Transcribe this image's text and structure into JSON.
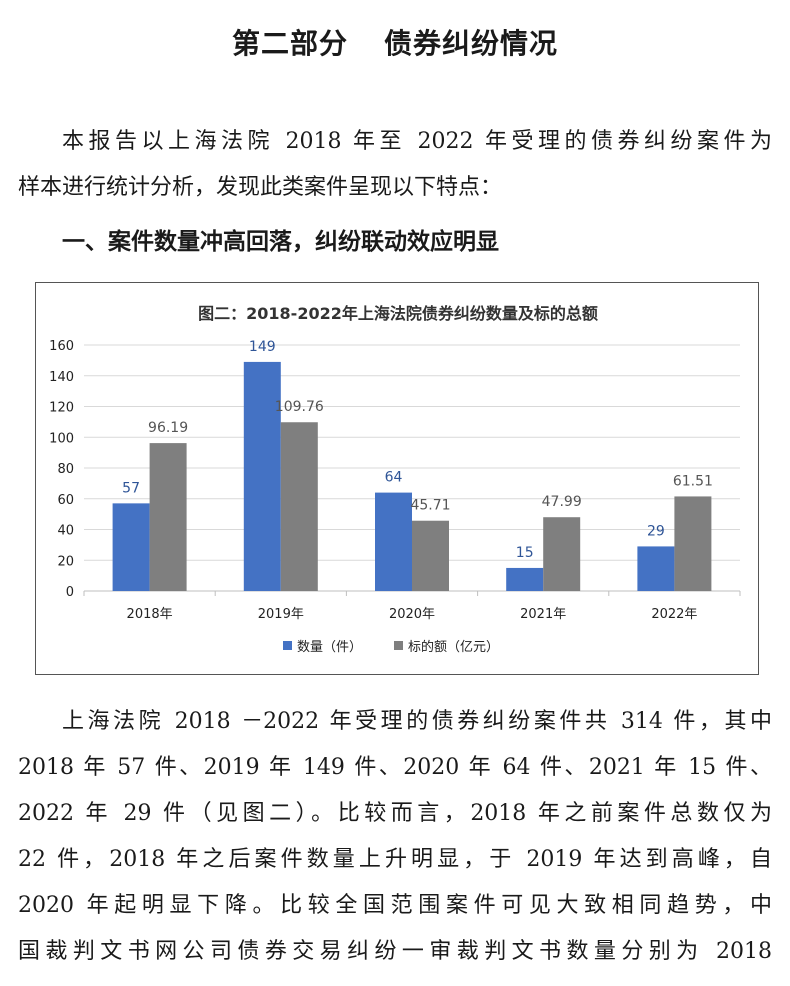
{
  "page": {
    "title_part": "第二部分",
    "title_name": "债券纠纷情况",
    "intro_lines": [
      "本报告以上海法院 2018 年至 2022 年受理的债券纠纷案件为",
      "样本进行统计分析，发现此类案件呈现以下特点："
    ],
    "heading": "一、案件数量冲高回落，纠纷联动效应明显",
    "body_lines": [
      "上海法院 2018 －2022 年受理的债券纠纷案件共 314 件，其中",
      "2018 年 57 件、2019 年 149 件、2020 年 64 件、2021 年 15 件、",
      "2022 年 29 件（见图二）。比较而言，2018 年之前案件总数仅为",
      "22 件，2018 年之后案件数量上升明显，于 2019 年达到高峰，自",
      "2020 年起明显下降。比较全国范围案件可见大致相同趋势，中",
      "国裁判文书网公司债券交易纠纷一审裁判文书数量分别为 2018"
    ]
  },
  "chart_data": {
    "type": "bar",
    "title": "图二：2018-2022年上海法院债券纠纷数量及标的总额",
    "categories": [
      "2018年",
      "2019年",
      "2020年",
      "2021年",
      "2022年"
    ],
    "series": [
      {
        "name": "数量（件）",
        "values": [
          57,
          149,
          64,
          15,
          29
        ],
        "labels": [
          "57",
          "149",
          "64",
          "15",
          "29"
        ],
        "color": "#4472c4"
      },
      {
        "name": "标的额（亿元）",
        "values": [
          96.19,
          109.76,
          45.71,
          47.99,
          61.51
        ],
        "labels": [
          "96.19",
          "109.76",
          "45.71",
          "47.99",
          "61.51"
        ],
        "color": "#7f7f7f"
      }
    ],
    "ylim": [
      0,
      160
    ],
    "yticks": [
      0,
      20,
      40,
      60,
      80,
      100,
      120,
      140,
      160
    ],
    "grid": true,
    "legend_position": "bottom"
  }
}
